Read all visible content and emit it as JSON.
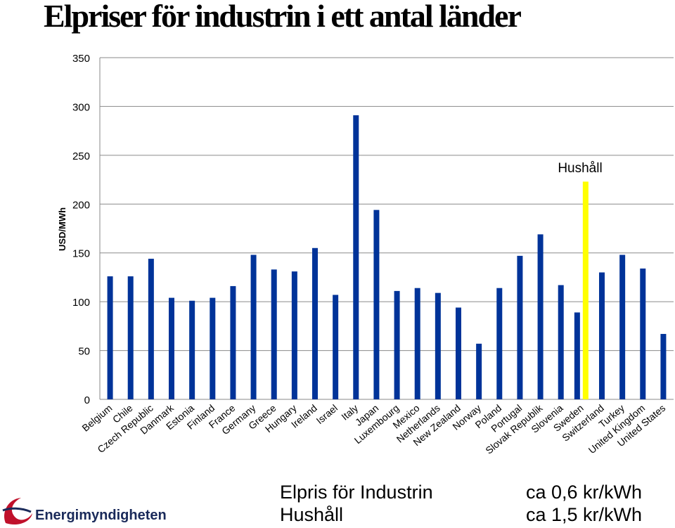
{
  "title": "Elpriser för industrin i ett antal länder",
  "chart_data": {
    "type": "bar",
    "ylabel": "USD/MWh",
    "xlabel": "",
    "ylim": [
      0,
      350
    ],
    "yticks": [
      0,
      50,
      100,
      150,
      200,
      250,
      300,
      350
    ],
    "grid": true,
    "categories": [
      "Belgium",
      "Chile",
      "Czech Republic",
      "Danmark",
      "Estonia",
      "Finland",
      "France",
      "Germany",
      "Greece",
      "Hungary",
      "Ireland",
      "Israel",
      "Italy",
      "Japan",
      "Luxembourg",
      "Mexico",
      "Netherlands",
      "New Zealand",
      "Norway",
      "Poland",
      "Portugal",
      "Slovak Republik",
      "Slovenia",
      "Sweden",
      "Switzerland",
      "Turkey",
      "United Kingdom",
      "United States"
    ],
    "series": [
      {
        "values": [
          126,
          126,
          144,
          104,
          101,
          104,
          116,
          148,
          133,
          131,
          155,
          107,
          291,
          194,
          111,
          114,
          109,
          94,
          57,
          114,
          147,
          169,
          117,
          89,
          130,
          148,
          134,
          67
        ],
        "color": "#003399"
      }
    ],
    "highlight": {
      "category": "Sweden",
      "value": 223,
      "label": "Hushåll",
      "color": "#ffff00"
    }
  },
  "footer": {
    "left_line1": "Elpris för Industrin",
    "left_line2": "Hushåll",
    "right_line1": "ca 0,6 kr/kWh",
    "right_line2": "ca 1,5 kr/kWh"
  },
  "logo": {
    "text": "Energimyndigheten",
    "colors": {
      "swoosh": "#c0112b",
      "text": "#1a2a5a"
    }
  }
}
